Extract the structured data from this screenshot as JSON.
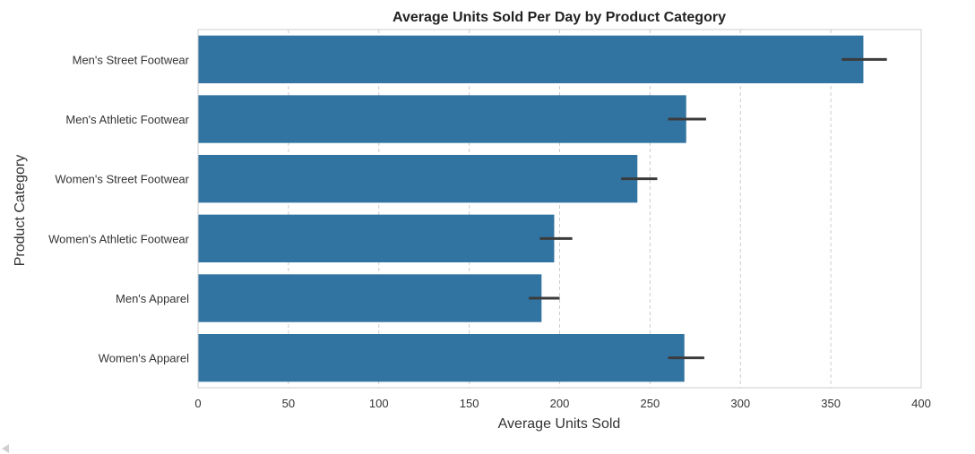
{
  "chart_data": {
    "type": "bar",
    "orientation": "horizontal",
    "title": "Average Units Sold Per Day by Product Category",
    "xlabel": "Average Units Sold",
    "ylabel": "Product Category",
    "xlim": [
      0,
      400
    ],
    "xticks": [
      0,
      50,
      100,
      150,
      200,
      250,
      300,
      350,
      400
    ],
    "grid": "x-dashed",
    "categories": [
      "Men's Street Footwear",
      "Men's Athletic Footwear",
      "Women's Street Footwear",
      "Women's Athletic Footwear",
      "Men's Apparel",
      "Women's Apparel"
    ],
    "values": [
      368,
      270,
      243,
      197,
      190,
      269
    ],
    "error_bars": [
      [
        356,
        381
      ],
      [
        260,
        281
      ],
      [
        234,
        254
      ],
      [
        189,
        207
      ],
      [
        183,
        200
      ],
      [
        260,
        280
      ]
    ],
    "colors": {
      "bar": "#3274a1",
      "error_bar": "#3b3b3b",
      "grid": "#cccccc",
      "axis": "#cccccc"
    }
  },
  "icons": {
    "scroll_left": "scroll-left-arrow-icon"
  }
}
